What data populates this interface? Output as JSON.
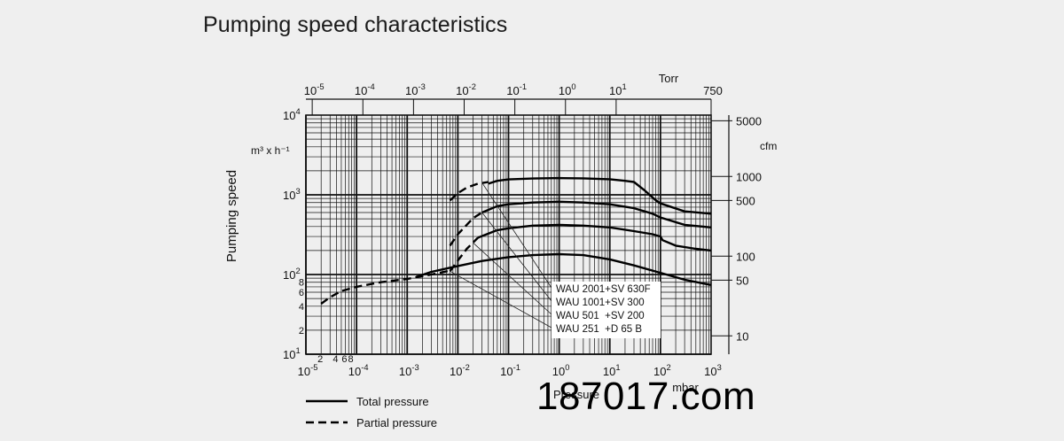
{
  "title": "Pumping speed characteristics",
  "watermark": "187017.com",
  "chart_data": {
    "type": "line",
    "title": "Pumping speed characteristics",
    "xscale": "log",
    "yscale": "log",
    "xlim": [
      1e-05,
      1000
    ],
    "ylim": [
      10,
      10000
    ],
    "xlabel": "Pressure",
    "x_unit": "mbar",
    "ylabel": "Pumping speed",
    "y_unit": "m³ x h⁻¹",
    "x_ticks": [
      {
        "v": 1e-05,
        "base": "10",
        "exp": "-5"
      },
      {
        "v": 0.0001,
        "base": "10",
        "exp": "-4"
      },
      {
        "v": 0.001,
        "base": "10",
        "exp": "-3"
      },
      {
        "v": 0.01,
        "base": "10",
        "exp": "-2"
      },
      {
        "v": 0.1,
        "base": "10",
        "exp": "-1"
      },
      {
        "v": 1,
        "base": "10",
        "exp": "0"
      },
      {
        "v": 10,
        "base": "10",
        "exp": "1"
      },
      {
        "v": 100,
        "base": "10",
        "exp": "2"
      },
      {
        "v": 1000,
        "base": "10",
        "exp": "3"
      }
    ],
    "x_minor_labels": [
      {
        "v": 2e-05,
        "text": "2"
      },
      {
        "v": 4e-05,
        "text": "4"
      },
      {
        "v": 6e-05,
        "text": "6"
      },
      {
        "v": 8e-05,
        "text": "8"
      }
    ],
    "y_ticks": [
      {
        "v": 10,
        "base": "10",
        "exp": "1"
      },
      {
        "v": 100,
        "base": "10",
        "exp": "2"
      },
      {
        "v": 1000,
        "base": "10",
        "exp": "3"
      },
      {
        "v": 10000,
        "base": "10",
        "exp": "4"
      }
    ],
    "y_minor_labels": [
      {
        "v": 20,
        "text": "2"
      },
      {
        "v": 40,
        "text": "4"
      },
      {
        "v": 60,
        "text": "6"
      },
      {
        "v": 80,
        "text": "8"
      }
    ],
    "top_axis": {
      "label": "Torr",
      "ticks": [
        {
          "torr": 1e-05,
          "base": "10",
          "exp": "-5"
        },
        {
          "torr": 0.0001,
          "base": "10",
          "exp": "-4"
        },
        {
          "torr": 0.001,
          "base": "10",
          "exp": "-3"
        },
        {
          "torr": 0.01,
          "base": "10",
          "exp": "-2"
        },
        {
          "torr": 0.1,
          "base": "10",
          "exp": "-1"
        },
        {
          "torr": 1,
          "base": "10",
          "exp": "0"
        },
        {
          "torr": 10,
          "base": "10",
          "exp": "1"
        },
        {
          "torr": 750,
          "base": "750",
          "exp": ""
        }
      ]
    },
    "right_axis": {
      "label": "cfm",
      "ticks": [
        {
          "cfm": 5000,
          "text": "5000"
        },
        {
          "cfm": 1000,
          "text": "1000"
        },
        {
          "cfm": 500,
          "text": "500"
        },
        {
          "cfm": 100,
          "text": "100"
        },
        {
          "cfm": 50,
          "text": "50"
        },
        {
          "cfm": 10,
          "text": "10"
        }
      ]
    },
    "series": [
      {
        "name": "WAU 2001+SV 630F",
        "total": [
          [
            0.04,
            1380
          ],
          [
            0.06,
            1500
          ],
          [
            0.1,
            1560
          ],
          [
            0.3,
            1600
          ],
          [
            1,
            1620
          ],
          [
            3,
            1610
          ],
          [
            10,
            1570
          ],
          [
            20,
            1500
          ],
          [
            30,
            1450
          ],
          [
            50,
            1120
          ],
          [
            80,
            860
          ],
          [
            100,
            780
          ],
          [
            300,
            620
          ],
          [
            1000,
            580
          ]
        ],
        "partial": [
          [
            0.007,
            850
          ],
          [
            0.01,
            1050
          ],
          [
            0.015,
            1230
          ],
          [
            0.025,
            1380
          ],
          [
            0.04,
            1450
          ]
        ]
      },
      {
        "name": "WAU 1001+SV 300",
        "total": [
          [
            0.03,
            600
          ],
          [
            0.06,
            720
          ],
          [
            0.1,
            760
          ],
          [
            0.3,
            800
          ],
          [
            1,
            820
          ],
          [
            3,
            800
          ],
          [
            10,
            760
          ],
          [
            30,
            680
          ],
          [
            70,
            580
          ],
          [
            100,
            520
          ],
          [
            300,
            420
          ],
          [
            1000,
            390
          ]
        ],
        "partial": [
          [
            0.007,
            230
          ],
          [
            0.01,
            320
          ],
          [
            0.015,
            420
          ],
          [
            0.02,
            510
          ],
          [
            0.03,
            600
          ]
        ]
      },
      {
        "name": "WAU 501 +SV 200",
        "total": [
          [
            0.025,
            290
          ],
          [
            0.06,
            360
          ],
          [
            0.1,
            380
          ],
          [
            0.3,
            410
          ],
          [
            1,
            420
          ],
          [
            3,
            410
          ],
          [
            10,
            390
          ],
          [
            30,
            350
          ],
          [
            70,
            320
          ],
          [
            100,
            300
          ],
          [
            110,
            270
          ],
          [
            200,
            230
          ],
          [
            500,
            210
          ],
          [
            1000,
            200
          ]
        ],
        "partial": [
          [
            0.007,
            110
          ],
          [
            0.01,
            150
          ],
          [
            0.015,
            210
          ],
          [
            0.025,
            290
          ]
        ]
      },
      {
        "name": "WAU 251 +D 65 B",
        "total": [
          [
            0.0015,
            93
          ],
          [
            0.003,
            108
          ],
          [
            0.01,
            128
          ],
          [
            0.03,
            148
          ],
          [
            0.1,
            165
          ],
          [
            0.3,
            175
          ],
          [
            1,
            180
          ],
          [
            3,
            175
          ],
          [
            10,
            155
          ],
          [
            30,
            130
          ],
          [
            100,
            105
          ],
          [
            300,
            86
          ],
          [
            1000,
            74
          ]
        ],
        "partial": [
          [
            2e-05,
            43
          ],
          [
            3e-05,
            52
          ],
          [
            5e-05,
            62
          ],
          [
            0.0001,
            70
          ],
          [
            0.0003,
            80
          ],
          [
            0.001,
            88
          ],
          [
            0.003,
            100
          ],
          [
            0.007,
            112
          ]
        ]
      }
    ],
    "legend": {
      "placement": "bottom-left",
      "items": [
        {
          "style": "solid",
          "label": "Total pressure"
        },
        {
          "style": "dashed",
          "label": "Partial pressure"
        }
      ]
    },
    "annotation_labels": [
      "WAU 2001+SV 630F",
      "WAU 1001+SV 300",
      "WAU 501  +SV 200",
      "WAU 251  +D 65 B"
    ],
    "grid": true
  }
}
